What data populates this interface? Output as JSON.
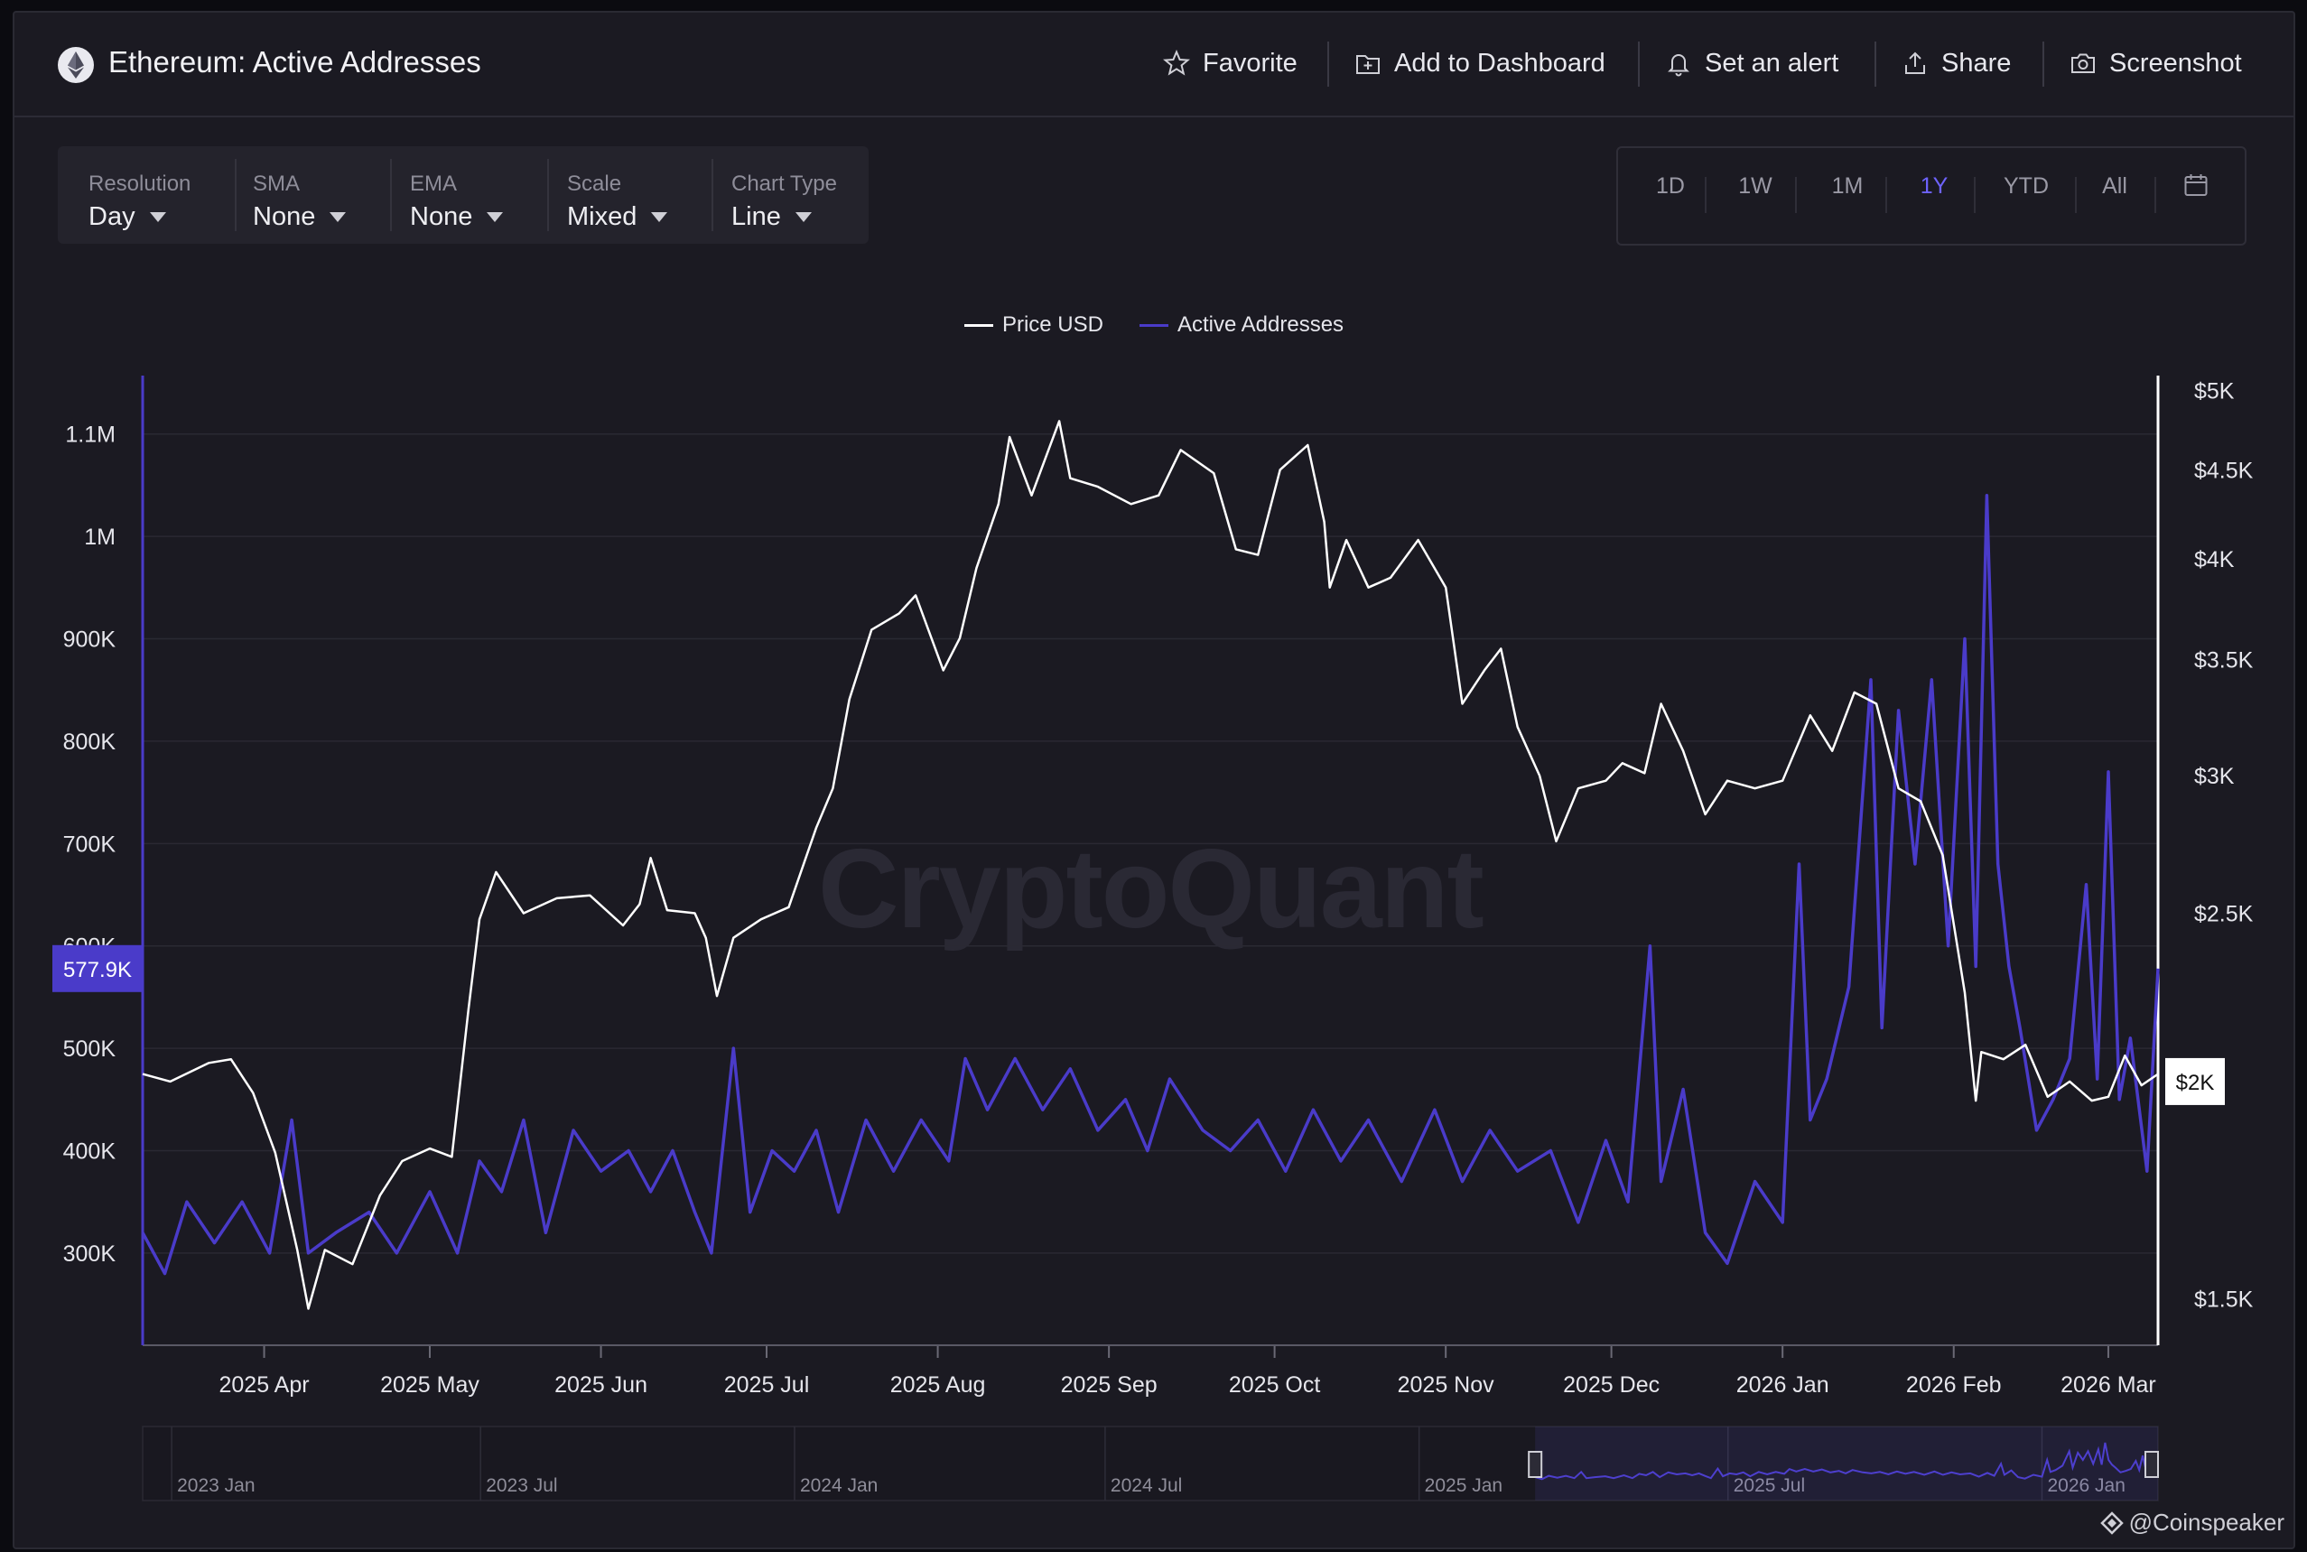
{
  "header": {
    "title": "Ethereum: Active Addresses",
    "favorite": "Favorite",
    "add_to_dashboard": "Add to Dashboard",
    "set_alert": "Set an alert",
    "share": "Share",
    "screenshot": "Screenshot"
  },
  "controls": [
    {
      "label": "Resolution",
      "value": "Day"
    },
    {
      "label": "SMA",
      "value": "None"
    },
    {
      "label": "EMA",
      "value": "None"
    },
    {
      "label": "Scale",
      "value": "Mixed"
    },
    {
      "label": "Chart Type",
      "value": "Line"
    }
  ],
  "ranges": {
    "items": [
      "1D",
      "1W",
      "1M",
      "1Y",
      "YTD",
      "All"
    ],
    "active": "1Y"
  },
  "watermark": "CryptoQuant",
  "credit": "@Coinspeaker",
  "colors": {
    "price": "#ffffff",
    "active_addresses": "#4a3bc9",
    "accent": "#6e63ff",
    "bg": "#1b1a22"
  },
  "chart_data": {
    "type": "line",
    "x_range": [
      "2025-03-10",
      "2026-03-10"
    ],
    "x_ticks": [
      {
        "date": "2025-04-01",
        "label": "2025 Apr"
      },
      {
        "date": "2025-05-01",
        "label": "2025 May"
      },
      {
        "date": "2025-06-01",
        "label": "2025 Jun"
      },
      {
        "date": "2025-07-01",
        "label": "2025 Jul"
      },
      {
        "date": "2025-08-01",
        "label": "2025 Aug"
      },
      {
        "date": "2025-09-01",
        "label": "2025 Sep"
      },
      {
        "date": "2025-10-01",
        "label": "2025 Oct"
      },
      {
        "date": "2025-11-01",
        "label": "2025 Nov"
      },
      {
        "date": "2025-12-01",
        "label": "2025 Dec"
      },
      {
        "date": "2026-01-01",
        "label": "2026 Jan"
      },
      {
        "date": "2026-02-01",
        "label": "2026 Feb"
      },
      {
        "date": "2026-03-01",
        "label": "2026 Mar"
      }
    ],
    "y_left": {
      "ylim": [
        210000,
        1150000
      ],
      "ticks": [
        {
          "value": 300000,
          "label": "300K"
        },
        {
          "value": 400000,
          "label": "400K"
        },
        {
          "value": 500000,
          "label": "500K"
        },
        {
          "value": 600000,
          "label": "600K"
        },
        {
          "value": 700000,
          "label": "700K"
        },
        {
          "value": 800000,
          "label": "800K"
        },
        {
          "value": 900000,
          "label": "900K"
        },
        {
          "value": 1000000,
          "label": "1M"
        },
        {
          "value": 1100000,
          "label": "1.1M"
        }
      ]
    },
    "y_right": {
      "scale": "log",
      "ylim": [
        1410,
        5050
      ],
      "ticks": [
        {
          "value": 1500,
          "label": "$1.5K"
        },
        {
          "value": 2500,
          "label": "$2.5K"
        },
        {
          "value": 3000,
          "label": "$3K"
        },
        {
          "value": 3500,
          "label": "$3.5K"
        },
        {
          "value": 4000,
          "label": "$4K"
        },
        {
          "value": 4500,
          "label": "$4.5K"
        },
        {
          "value": 5000,
          "label": "$5K"
        }
      ]
    },
    "current_left": {
      "value": 577900,
      "label": "577.9K"
    },
    "current_right": {
      "value": 2000,
      "label": "$2K"
    },
    "series": [
      {
        "name": "Price USD",
        "axis": "right",
        "points": [
          [
            "2025-03-10",
            2020
          ],
          [
            "2025-03-15",
            2000
          ],
          [
            "2025-03-22",
            2050
          ],
          [
            "2025-03-26",
            2060
          ],
          [
            "2025-03-30",
            1970
          ],
          [
            "2025-04-03",
            1820
          ],
          [
            "2025-04-07",
            1600
          ],
          [
            "2025-04-09",
            1480
          ],
          [
            "2025-04-12",
            1600
          ],
          [
            "2025-04-17",
            1570
          ],
          [
            "2025-04-22",
            1720
          ],
          [
            "2025-04-26",
            1800
          ],
          [
            "2025-05-01",
            1830
          ],
          [
            "2025-05-05",
            1810
          ],
          [
            "2025-05-08",
            2200
          ],
          [
            "2025-05-10",
            2480
          ],
          [
            "2025-05-13",
            2640
          ],
          [
            "2025-05-18",
            2500
          ],
          [
            "2025-05-24",
            2550
          ],
          [
            "2025-05-30",
            2560
          ],
          [
            "2025-06-05",
            2460
          ],
          [
            "2025-06-08",
            2530
          ],
          [
            "2025-06-10",
            2690
          ],
          [
            "2025-06-13",
            2510
          ],
          [
            "2025-06-18",
            2500
          ],
          [
            "2025-06-20",
            2420
          ],
          [
            "2025-06-22",
            2240
          ],
          [
            "2025-06-25",
            2420
          ],
          [
            "2025-06-30",
            2480
          ],
          [
            "2025-07-05",
            2520
          ],
          [
            "2025-07-10",
            2800
          ],
          [
            "2025-07-13",
            2950
          ],
          [
            "2025-07-16",
            3320
          ],
          [
            "2025-07-20",
            3640
          ],
          [
            "2025-07-25",
            3720
          ],
          [
            "2025-07-28",
            3810
          ],
          [
            "2025-08-02",
            3450
          ],
          [
            "2025-08-05",
            3600
          ],
          [
            "2025-08-08",
            3950
          ],
          [
            "2025-08-12",
            4300
          ],
          [
            "2025-08-14",
            4700
          ],
          [
            "2025-08-18",
            4350
          ],
          [
            "2025-08-23",
            4800
          ],
          [
            "2025-08-25",
            4450
          ],
          [
            "2025-08-30",
            4400
          ],
          [
            "2025-09-05",
            4300
          ],
          [
            "2025-09-10",
            4350
          ],
          [
            "2025-09-14",
            4620
          ],
          [
            "2025-09-20",
            4480
          ],
          [
            "2025-09-24",
            4050
          ],
          [
            "2025-09-28",
            4020
          ],
          [
            "2025-10-02",
            4500
          ],
          [
            "2025-10-07",
            4650
          ],
          [
            "2025-10-10",
            4200
          ],
          [
            "2025-10-11",
            3850
          ],
          [
            "2025-10-14",
            4100
          ],
          [
            "2025-10-18",
            3850
          ],
          [
            "2025-10-22",
            3900
          ],
          [
            "2025-10-27",
            4100
          ],
          [
            "2025-11-01",
            3850
          ],
          [
            "2025-11-04",
            3300
          ],
          [
            "2025-11-08",
            3450
          ],
          [
            "2025-11-11",
            3550
          ],
          [
            "2025-11-14",
            3200
          ],
          [
            "2025-11-18",
            3000
          ],
          [
            "2025-11-21",
            2750
          ],
          [
            "2025-11-25",
            2950
          ],
          [
            "2025-11-30",
            2980
          ],
          [
            "2025-12-03",
            3050
          ],
          [
            "2025-12-07",
            3010
          ],
          [
            "2025-12-10",
            3300
          ],
          [
            "2025-12-14",
            3100
          ],
          [
            "2025-12-18",
            2850
          ],
          [
            "2025-12-22",
            2980
          ],
          [
            "2025-12-27",
            2950
          ],
          [
            "2026-01-01",
            2980
          ],
          [
            "2026-01-06",
            3250
          ],
          [
            "2026-01-10",
            3100
          ],
          [
            "2026-01-14",
            3350
          ],
          [
            "2026-01-18",
            3300
          ],
          [
            "2026-01-22",
            2950
          ],
          [
            "2026-01-26",
            2900
          ],
          [
            "2026-01-30",
            2700
          ],
          [
            "2026-02-03",
            2250
          ],
          [
            "2026-02-05",
            1950
          ],
          [
            "2026-02-06",
            2080
          ],
          [
            "2026-02-10",
            2060
          ],
          [
            "2026-02-14",
            2100
          ],
          [
            "2026-02-18",
            1960
          ],
          [
            "2026-02-22",
            2000
          ],
          [
            "2026-02-26",
            1950
          ],
          [
            "2026-03-01",
            1960
          ],
          [
            "2026-03-04",
            2070
          ],
          [
            "2026-03-07",
            1990
          ],
          [
            "2026-03-10",
            2020
          ]
        ]
      },
      {
        "name": "Active Addresses",
        "axis": "left",
        "points": [
          [
            "2025-03-10",
            320000
          ],
          [
            "2025-03-14",
            280000
          ],
          [
            "2025-03-18",
            350000
          ],
          [
            "2025-03-23",
            310000
          ],
          [
            "2025-03-28",
            350000
          ],
          [
            "2025-04-02",
            300000
          ],
          [
            "2025-04-06",
            430000
          ],
          [
            "2025-04-09",
            300000
          ],
          [
            "2025-04-14",
            320000
          ],
          [
            "2025-04-20",
            340000
          ],
          [
            "2025-04-25",
            300000
          ],
          [
            "2025-05-01",
            360000
          ],
          [
            "2025-05-06",
            300000
          ],
          [
            "2025-05-10",
            390000
          ],
          [
            "2025-05-14",
            360000
          ],
          [
            "2025-05-18",
            430000
          ],
          [
            "2025-05-22",
            320000
          ],
          [
            "2025-05-27",
            420000
          ],
          [
            "2025-06-01",
            380000
          ],
          [
            "2025-06-06",
            400000
          ],
          [
            "2025-06-10",
            360000
          ],
          [
            "2025-06-14",
            400000
          ],
          [
            "2025-06-18",
            340000
          ],
          [
            "2025-06-21",
            300000
          ],
          [
            "2025-06-25",
            500000
          ],
          [
            "2025-06-28",
            340000
          ],
          [
            "2025-07-02",
            400000
          ],
          [
            "2025-07-06",
            380000
          ],
          [
            "2025-07-10",
            420000
          ],
          [
            "2025-07-14",
            340000
          ],
          [
            "2025-07-19",
            430000
          ],
          [
            "2025-07-24",
            380000
          ],
          [
            "2025-07-29",
            430000
          ],
          [
            "2025-08-03",
            390000
          ],
          [
            "2025-08-06",
            490000
          ],
          [
            "2025-08-10",
            440000
          ],
          [
            "2025-08-15",
            490000
          ],
          [
            "2025-08-20",
            440000
          ],
          [
            "2025-08-25",
            480000
          ],
          [
            "2025-08-30",
            420000
          ],
          [
            "2025-09-04",
            450000
          ],
          [
            "2025-09-08",
            400000
          ],
          [
            "2025-09-12",
            470000
          ],
          [
            "2025-09-18",
            420000
          ],
          [
            "2025-09-23",
            400000
          ],
          [
            "2025-09-28",
            430000
          ],
          [
            "2025-10-03",
            380000
          ],
          [
            "2025-10-08",
            440000
          ],
          [
            "2025-10-13",
            390000
          ],
          [
            "2025-10-18",
            430000
          ],
          [
            "2025-10-24",
            370000
          ],
          [
            "2025-10-30",
            440000
          ],
          [
            "2025-11-04",
            370000
          ],
          [
            "2025-11-09",
            420000
          ],
          [
            "2025-11-14",
            380000
          ],
          [
            "2025-11-20",
            400000
          ],
          [
            "2025-11-25",
            330000
          ],
          [
            "2025-11-30",
            410000
          ],
          [
            "2025-12-04",
            350000
          ],
          [
            "2025-12-08",
            600000
          ],
          [
            "2025-12-10",
            370000
          ],
          [
            "2025-12-14",
            460000
          ],
          [
            "2025-12-18",
            320000
          ],
          [
            "2025-12-22",
            290000
          ],
          [
            "2025-12-27",
            370000
          ],
          [
            "2026-01-01",
            330000
          ],
          [
            "2026-01-04",
            680000
          ],
          [
            "2026-01-06",
            430000
          ],
          [
            "2026-01-09",
            470000
          ],
          [
            "2026-01-13",
            560000
          ],
          [
            "2026-01-17",
            860000
          ],
          [
            "2026-01-19",
            520000
          ],
          [
            "2026-01-22",
            830000
          ],
          [
            "2026-01-25",
            680000
          ],
          [
            "2026-01-28",
            860000
          ],
          [
            "2026-01-31",
            600000
          ],
          [
            "2026-02-03",
            900000
          ],
          [
            "2026-02-05",
            580000
          ],
          [
            "2026-02-07",
            1040000
          ],
          [
            "2026-02-09",
            680000
          ],
          [
            "2026-02-11",
            580000
          ],
          [
            "2026-02-13",
            520000
          ],
          [
            "2026-02-16",
            420000
          ],
          [
            "2026-02-19",
            450000
          ],
          [
            "2026-02-22",
            490000
          ],
          [
            "2026-02-25",
            660000
          ],
          [
            "2026-02-27",
            470000
          ],
          [
            "2026-03-01",
            770000
          ],
          [
            "2026-03-03",
            450000
          ],
          [
            "2026-03-05",
            510000
          ],
          [
            "2026-03-08",
            380000
          ],
          [
            "2026-03-10",
            577900
          ]
        ]
      }
    ],
    "navigator": {
      "range": [
        "2022-12-15",
        "2026-03-10"
      ],
      "ticks": [
        {
          "date": "2023-01-01",
          "label": "2023 Jan"
        },
        {
          "date": "2023-07-01",
          "label": "2023 Jul"
        },
        {
          "date": "2024-01-01",
          "label": "2024 Jan"
        },
        {
          "date": "2024-07-01",
          "label": "2024 Jul"
        },
        {
          "date": "2025-01-01",
          "label": "2025 Jan"
        },
        {
          "date": "2025-07-01",
          "label": "2025 Jul"
        },
        {
          "date": "2026-01-01",
          "label": "2026 Jan"
        }
      ],
      "selection": [
        "2025-03-10",
        "2026-03-10"
      ]
    }
  }
}
